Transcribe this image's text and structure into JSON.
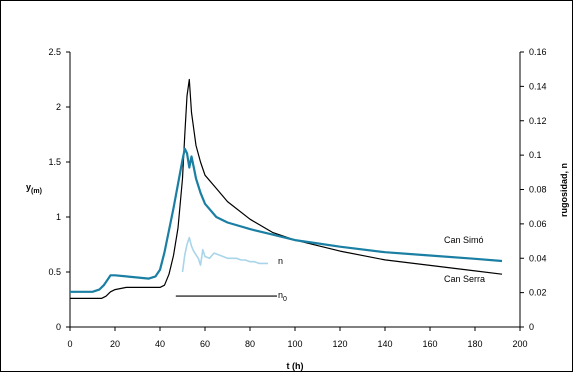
{
  "chart_data": {
    "type": "line",
    "xlabel": "t (h)",
    "ylabel_left": {
      "main": "y",
      "sub": "(m)"
    },
    "ylabel_right": "rugosidad, n",
    "xlim": [
      0,
      200
    ],
    "xticks": [
      "0",
      "20",
      "40",
      "60",
      "80",
      "100",
      "120",
      "140",
      "160",
      "180",
      "200"
    ],
    "ylim_left": [
      0,
      2.5
    ],
    "yticks_left": [
      "0",
      "0.5",
      "1",
      "1.5",
      "2",
      "2.5"
    ],
    "ylim_right": [
      0,
      0.16
    ],
    "yticks_right": [
      "0",
      "0.02",
      "0.04",
      "0.06",
      "0.08",
      "0.1",
      "0.12",
      "0.14",
      "0.16"
    ],
    "grid": false,
    "colors": {
      "can_simo": "#000000",
      "can_serra": "#1a7fa3",
      "n": "#a9d5ea",
      "n0": "#000000"
    },
    "annotations": {
      "can_simo": "Can Simó",
      "can_serra": "Can Serra",
      "n": "n",
      "n0_main": "n",
      "n0_sub": "0"
    },
    "series": [
      {
        "key": "can_simo",
        "axis": "left",
        "x": [
          0,
          14,
          16,
          18,
          20,
          25,
          30,
          35,
          40,
          42,
          44,
          46,
          48,
          50,
          51,
          52,
          53,
          54,
          56,
          58,
          60,
          65,
          70,
          80,
          90,
          100,
          120,
          140,
          160,
          180,
          192
        ],
        "y": [
          0.26,
          0.26,
          0.28,
          0.32,
          0.34,
          0.36,
          0.36,
          0.36,
          0.36,
          0.38,
          0.48,
          0.65,
          0.9,
          1.35,
          1.75,
          2.1,
          2.25,
          1.95,
          1.65,
          1.5,
          1.38,
          1.26,
          1.14,
          0.98,
          0.86,
          0.79,
          0.69,
          0.61,
          0.56,
          0.51,
          0.48
        ]
      },
      {
        "key": "can_serra",
        "axis": "left",
        "x": [
          0,
          10,
          13,
          15,
          17,
          18,
          20,
          25,
          30,
          35,
          38,
          40,
          42,
          44,
          46,
          48,
          50,
          51,
          52,
          53,
          54,
          55,
          56,
          58,
          60,
          65,
          70,
          80,
          90,
          100,
          110,
          120,
          140,
          160,
          180,
          192
        ],
        "y": [
          0.32,
          0.32,
          0.34,
          0.38,
          0.44,
          0.47,
          0.47,
          0.46,
          0.45,
          0.44,
          0.46,
          0.52,
          0.68,
          0.88,
          1.08,
          1.3,
          1.52,
          1.62,
          1.58,
          1.45,
          1.55,
          1.45,
          1.35,
          1.22,
          1.12,
          1.0,
          0.95,
          0.89,
          0.84,
          0.79,
          0.76,
          0.73,
          0.68,
          0.65,
          0.62,
          0.6
        ]
      },
      {
        "key": "n",
        "axis": "right",
        "x": [
          50,
          51,
          52,
          53,
          54,
          55,
          56,
          57,
          58,
          59,
          60,
          62,
          64,
          66,
          68,
          70,
          72,
          74,
          76,
          78,
          80,
          82,
          84,
          86,
          88
        ],
        "y": [
          0.032,
          0.042,
          0.048,
          0.052,
          0.047,
          0.044,
          0.042,
          0.04,
          0.036,
          0.045,
          0.041,
          0.04,
          0.043,
          0.042,
          0.041,
          0.04,
          0.04,
          0.04,
          0.039,
          0.039,
          0.038,
          0.038,
          0.037,
          0.037,
          0.037
        ]
      },
      {
        "key": "n0",
        "axis": "right",
        "x": [
          47,
          92
        ],
        "y": [
          0.018,
          0.018
        ]
      }
    ]
  }
}
